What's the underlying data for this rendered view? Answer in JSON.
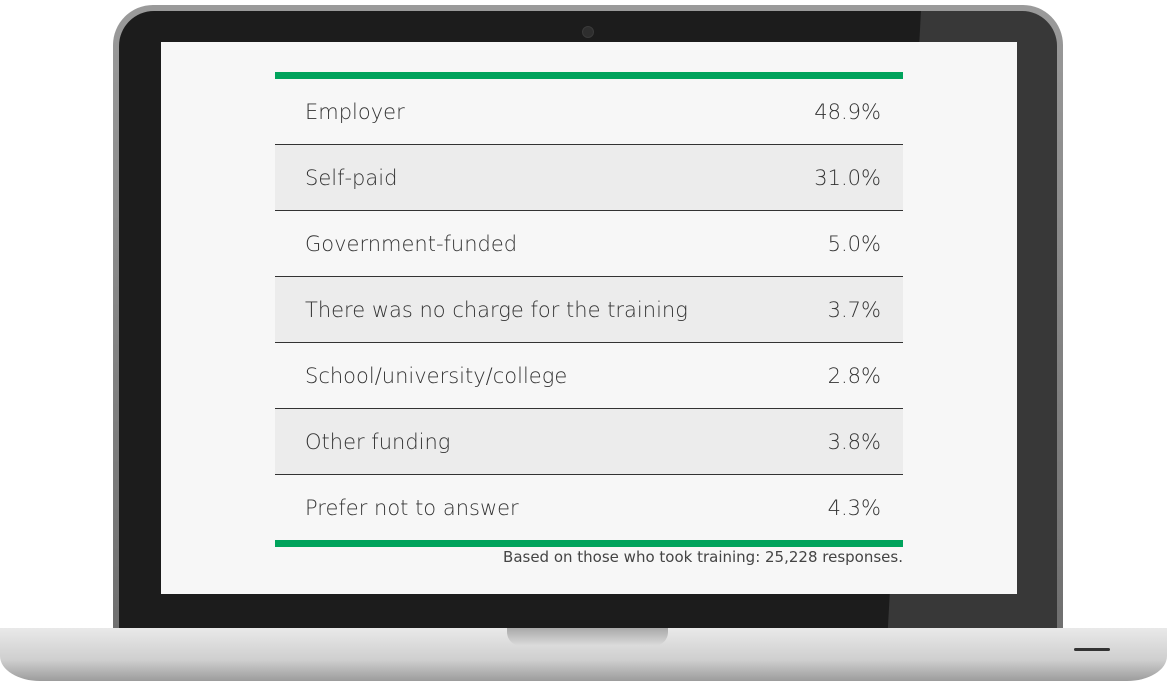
{
  "table": {
    "rows": [
      [
        "Employer",
        "48.9%"
      ],
      [
        "Self-paid",
        "31.0%"
      ],
      [
        "Government-funded",
        "5.0%"
      ],
      [
        "There was no charge for the training",
        "3.7%"
      ],
      [
        "School/university/college",
        "2.8%"
      ],
      [
        "Other funding",
        "3.8%"
      ],
      [
        "Prefer not to answer",
        "4.3%"
      ]
    ]
  },
  "footnote": "Based on those who took training: 25,228 responses."
}
